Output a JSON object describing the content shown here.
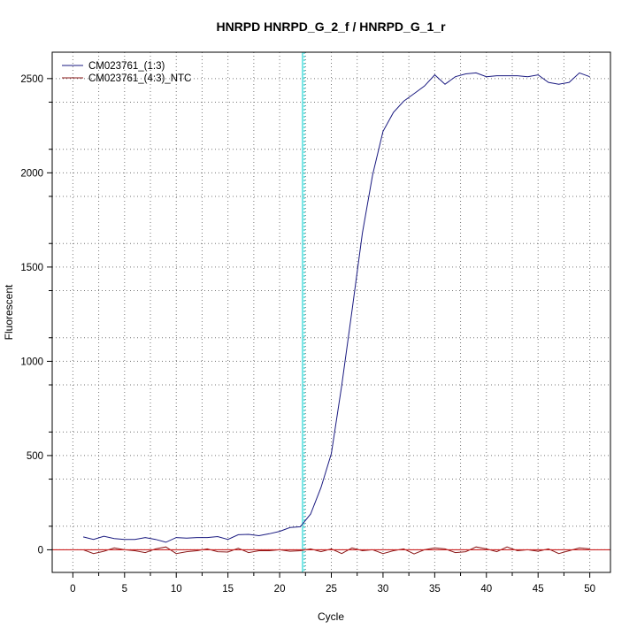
{
  "chart_data": {
    "type": "line",
    "title": "HNRPD  HNRPD_G_2_f / HNRPD_G_1_r",
    "xlabel": "Cycle",
    "ylabel": "Fluorescent",
    "xlim": [
      -2,
      52
    ],
    "ylim": [
      -120,
      2640
    ],
    "xticks": [
      0,
      5,
      10,
      15,
      20,
      25,
      30,
      35,
      40,
      45,
      50
    ],
    "yticks": [
      0,
      500,
      1000,
      1500,
      2000,
      2500
    ],
    "x_minor_grid": [
      2.5,
      7.5,
      12.5,
      17.5,
      22.5,
      27.5,
      32.5,
      37.5,
      42.5,
      47.5
    ],
    "y_minor_grid": [
      125,
      375,
      625,
      875,
      1125,
      1375,
      1625,
      1875,
      2125,
      2375
    ],
    "grid": true,
    "legend_position": "top-left",
    "threshold_cycle": 22.3,
    "baseline": 0,
    "colors": {
      "series1": "#1a1a80",
      "series2": "#8b1a1a",
      "threshold": "#00cccc",
      "baseline": "#cc2222",
      "grid": "#777777"
    },
    "series": [
      {
        "name": "CM023761_(1:3)",
        "color": "#1a1a80",
        "x": [
          1,
          2,
          3,
          4,
          5,
          6,
          7,
          8,
          9,
          10,
          11,
          12,
          13,
          14,
          15,
          16,
          17,
          18,
          19,
          20,
          21,
          22,
          23,
          24,
          25,
          26,
          27,
          28,
          29,
          30,
          31,
          32,
          33,
          34,
          35,
          36,
          37,
          38,
          39,
          40,
          41,
          42,
          43,
          44,
          45,
          46,
          47,
          48,
          49,
          50
        ],
        "values": [
          68,
          55,
          72,
          60,
          55,
          55,
          65,
          55,
          40,
          65,
          62,
          65,
          65,
          70,
          55,
          80,
          82,
          75,
          85,
          98,
          118,
          122,
          190,
          330,
          510,
          870,
          1270,
          1680,
          1990,
          2220,
          2320,
          2380,
          2420,
          2460,
          2520,
          2470,
          2510,
          2525,
          2530,
          2510,
          2515,
          2515,
          2515,
          2510,
          2520,
          2480,
          2470,
          2480,
          2530,
          2510
        ]
      },
      {
        "name": "CM023761_(4:3)_NTC",
        "color": "#8b1a1a",
        "x": [
          1,
          2,
          3,
          4,
          5,
          6,
          7,
          8,
          9,
          10,
          11,
          12,
          13,
          14,
          15,
          16,
          17,
          18,
          19,
          20,
          21,
          22,
          23,
          24,
          25,
          26,
          27,
          28,
          29,
          30,
          31,
          32,
          33,
          34,
          35,
          36,
          37,
          38,
          39,
          40,
          41,
          42,
          43,
          44,
          45,
          46,
          47,
          48,
          49,
          50
        ],
        "values": [
          0,
          -20,
          -8,
          10,
          0,
          -5,
          -15,
          5,
          15,
          -20,
          -10,
          -5,
          5,
          -10,
          -12,
          8,
          -15,
          -5,
          -5,
          0,
          -8,
          -5,
          5,
          -10,
          5,
          -20,
          10,
          -5,
          0,
          -20,
          -5,
          5,
          -22,
          0,
          10,
          5,
          -15,
          -10,
          15,
          5,
          -10,
          15,
          -5,
          0,
          -8,
          5,
          -20,
          -5,
          10,
          5
        ]
      }
    ]
  }
}
